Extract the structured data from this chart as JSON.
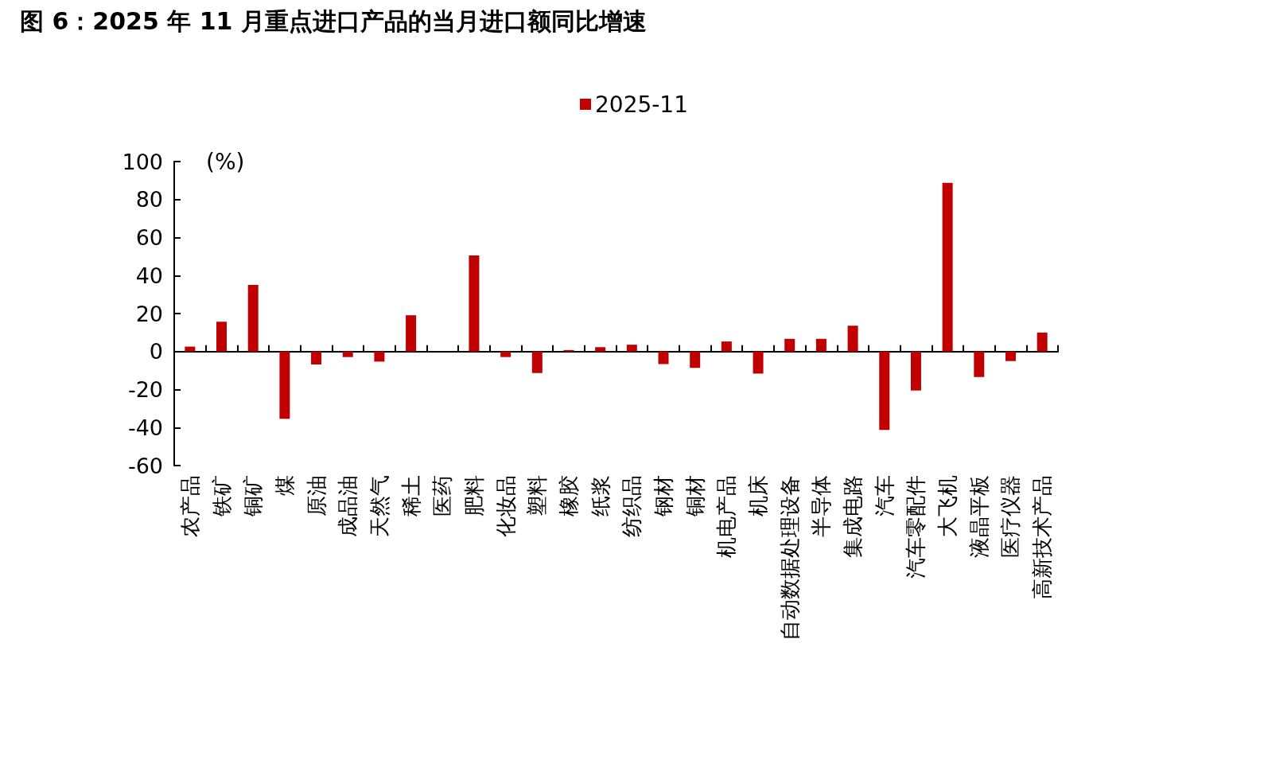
{
  "chart_data": {
    "type": "bar",
    "title": "图 6：2025 年 11 月重点进口产品的当月进口额同比增速",
    "ylabel": "(%)",
    "categories": [
      "农产品",
      "铁矿",
      "铜矿",
      "煤",
      "原油",
      "成品油",
      "天然气",
      "稀土",
      "医药",
      "肥料",
      "化妆品",
      "塑料",
      "橡胶",
      "纸浆",
      "纺织品",
      "钢材",
      "铜材",
      "机电产品",
      "机床",
      "自动数据处理设备",
      "半导体",
      "集成电路",
      "汽车",
      "汽车零配件",
      "大飞机",
      "液晶平板",
      "医疗仪器",
      "高新技术产品"
    ],
    "series": [
      {
        "name": "2025-11",
        "color": "#c00000",
        "values": [
          2.6,
          15.7,
          35.1,
          -35.4,
          -6.8,
          -2.9,
          -5.3,
          19.1,
          0,
          50.6,
          -2.9,
          -11.3,
          0.8,
          2.3,
          3.6,
          -6.6,
          -8.6,
          5.3,
          -11.6,
          6.7,
          6.7,
          13.6,
          -41.3,
          -20.5,
          88.8,
          -13.4,
          -5.0,
          10.0
        ]
      }
    ],
    "ylim": [
      -60,
      100
    ],
    "yticks": [
      -60,
      -40,
      -20,
      0,
      20,
      40,
      60,
      80,
      100
    ],
    "legend": "top"
  }
}
